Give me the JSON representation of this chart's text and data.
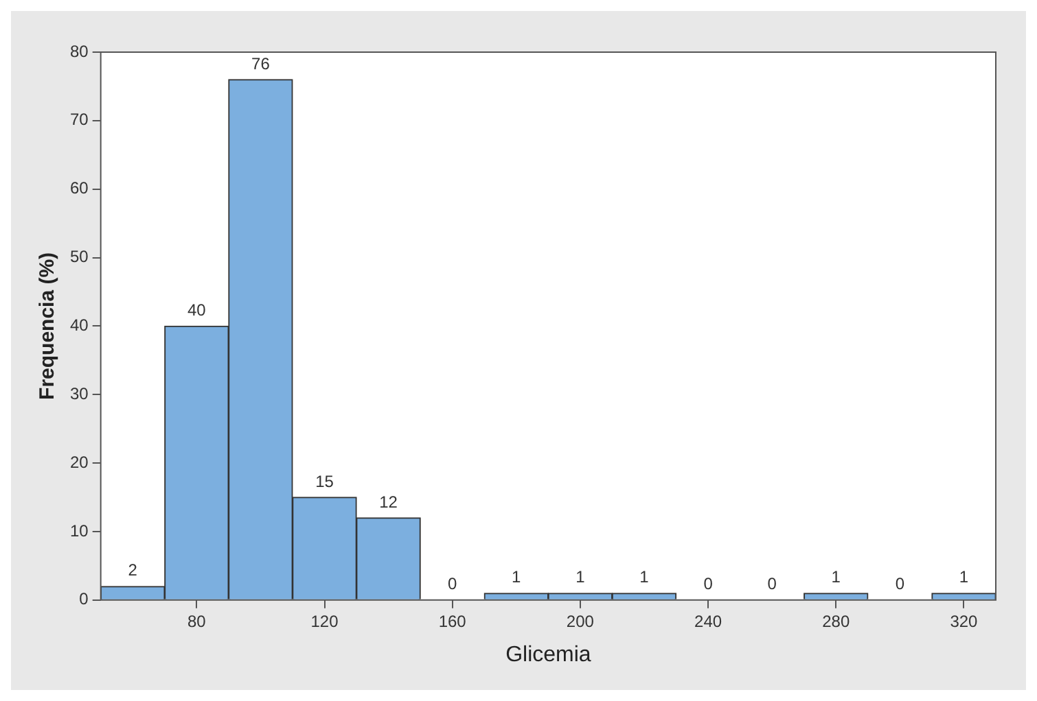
{
  "chart_data": {
    "type": "histogram",
    "xlabel": "Glicemia",
    "ylabel": "Frequencia (%)",
    "bins": [
      50,
      70,
      90,
      110,
      130,
      150,
      170,
      190,
      210,
      230,
      250,
      270,
      290,
      310,
      330
    ],
    "values": [
      2,
      40,
      76,
      15,
      12,
      0,
      1,
      1,
      1,
      0,
      0,
      1,
      0,
      1
    ],
    "color": "#7cafdf",
    "xlim": [
      50,
      330
    ],
    "xticks": [
      80,
      120,
      160,
      200,
      240,
      280,
      320
    ],
    "ylim": [
      0,
      80
    ],
    "yticks": [
      0,
      10,
      20,
      30,
      40,
      50,
      60,
      70,
      80
    ],
    "data_labels": true,
    "legend": false
  }
}
